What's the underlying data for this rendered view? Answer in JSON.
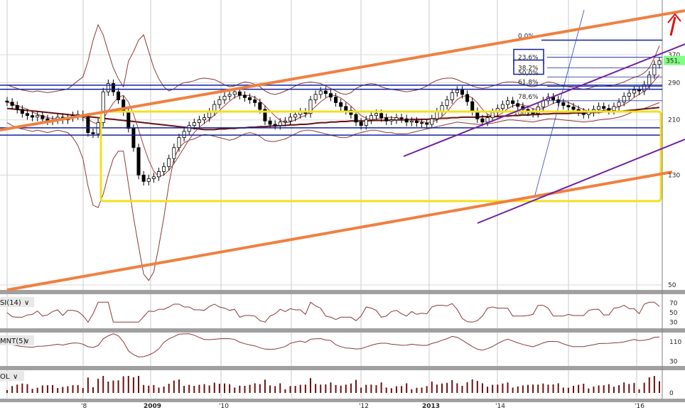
{
  "chart_data": [
    {
      "type": "candlestick",
      "panel": "price",
      "scale": "log",
      "y_ticks": [
        370,
        290,
        210,
        130,
        50
      ],
      "x_ticks": [
        "'8",
        "2009",
        "'10",
        "'12",
        "2013",
        "'14",
        "'16"
      ],
      "last_price_label": "351,",
      "fibonacci_levels": [
        {
          "label": "0,0%",
          "value": 420
        },
        {
          "label": "23,6%",
          "value": 362
        },
        {
          "label": "38,2%",
          "value": 330
        },
        {
          "label": "50,0%",
          "value": 305
        },
        {
          "label": "61,8%",
          "value": 281
        },
        {
          "label": "78,6%",
          "value": 248
        },
        {
          "label": "100,0%",
          "value": 215
        }
      ],
      "horizontal_levels": [
        420,
        284,
        274,
        196,
        184
      ],
      "closes": [
        245,
        238,
        230,
        222,
        218,
        215,
        218,
        212,
        208,
        210,
        215,
        210,
        214,
        218,
        220,
        215,
        188,
        186,
        205,
        268,
        288,
        268,
        250,
        225,
        195,
        165,
        130,
        123,
        126,
        128,
        134,
        140,
        150,
        165,
        180,
        190,
        200,
        205,
        210,
        214,
        225,
        240,
        250,
        258,
        262,
        268,
        260,
        255,
        250,
        244,
        230,
        208,
        202,
        200,
        206,
        208,
        215,
        220,
        225,
        222,
        250,
        262,
        270,
        264,
        256,
        244,
        236,
        228,
        220,
        206,
        200,
        210,
        218,
        222,
        214,
        208,
        210,
        214,
        212,
        206,
        208,
        205,
        204,
        202,
        212,
        225,
        238,
        250,
        266,
        272,
        262,
        246,
        226,
        212,
        206,
        214,
        224,
        232,
        240,
        248,
        242,
        236,
        230,
        225,
        222,
        235,
        248,
        256,
        250,
        244,
        238,
        235,
        230,
        225,
        220,
        224,
        230,
        236,
        232,
        228,
        236,
        245,
        258,
        265,
        272,
        270,
        285,
        310,
        340,
        351
      ],
      "bands_upper": [
        285,
        280,
        276,
        272,
        270,
        268,
        270,
        268,
        266,
        268,
        270,
        272,
        275,
        285,
        295,
        305,
        350,
        420,
        480,
        440,
        380,
        330,
        300,
        280,
        350,
        380,
        420,
        440,
        380,
        330,
        300,
        280,
        270,
        275,
        285,
        290,
        292,
        295,
        300,
        302,
        300,
        298,
        292,
        285,
        280,
        282,
        288,
        292,
        290,
        286,
        280,
        270,
        264,
        262,
        265,
        270,
        275,
        282,
        288,
        290,
        292,
        290,
        288,
        282,
        276,
        270,
        264,
        262,
        266,
        276,
        282,
        286,
        288,
        286,
        280,
        276,
        274,
        272,
        270,
        268,
        270,
        272,
        276,
        282,
        290,
        296,
        300,
        302,
        302,
        298,
        292,
        288,
        282,
        278,
        276,
        278,
        282,
        286,
        290,
        292,
        292,
        290,
        286,
        282,
        280,
        283,
        288,
        292,
        290,
        286,
        282,
        280,
        278,
        276,
        274,
        276,
        280,
        284,
        284,
        282,
        284,
        288,
        292,
        298,
        304,
        308,
        316,
        330,
        360,
        400
      ],
      "bands_lower": [
        205,
        200,
        196,
        194,
        192,
        190,
        192,
        190,
        188,
        190,
        192,
        190,
        188,
        180,
        168,
        150,
        118,
        100,
        98,
        110,
        130,
        150,
        160,
        160,
        120,
        90,
        70,
        55,
        52,
        56,
        70,
        90,
        120,
        150,
        165,
        172,
        176,
        178,
        182,
        185,
        184,
        182,
        180,
        178,
        176,
        178,
        182,
        186,
        188,
        186,
        182,
        176,
        174,
        174,
        176,
        178,
        182,
        186,
        190,
        192,
        192,
        190,
        188,
        186,
        184,
        182,
        180,
        180,
        182,
        186,
        188,
        190,
        192,
        192,
        190,
        188,
        188,
        186,
        186,
        186,
        188,
        190,
        192,
        194,
        196,
        198,
        200,
        202,
        204,
        206,
        205,
        204,
        203,
        202,
        202,
        203,
        204,
        206,
        208,
        210,
        210,
        209,
        208,
        207,
        206,
        208,
        210,
        212,
        212,
        211,
        210,
        209,
        208,
        207,
        206,
        207,
        208,
        210,
        211,
        212,
        213,
        215,
        218,
        222,
        226,
        230,
        232,
        236,
        240,
        244
      ],
      "ma_slow": [
        232,
        231,
        230,
        229,
        228,
        227,
        226,
        225,
        224,
        223,
        222,
        221,
        220,
        219,
        218,
        217,
        216,
        215,
        214,
        213,
        212,
        211,
        210,
        209,
        208,
        207,
        206,
        205,
        204,
        203,
        202,
        201,
        200,
        199,
        198,
        197,
        196,
        195,
        194,
        193,
        193,
        193,
        194,
        194,
        195,
        195,
        196,
        196,
        197,
        197,
        198,
        198,
        199,
        199,
        200,
        200,
        201,
        201,
        202,
        202,
        203,
        204,
        205,
        205,
        206,
        206,
        207,
        207,
        208,
        208,
        208,
        208,
        209,
        209,
        209,
        209,
        210,
        210,
        210,
        210,
        211,
        211,
        211,
        211,
        212,
        212,
        213,
        213,
        214,
        214,
        215,
        215,
        215,
        215,
        216,
        216,
        216,
        216,
        217,
        217,
        218,
        218,
        219,
        219,
        220,
        220,
        221,
        221,
        222,
        222,
        222,
        222,
        223,
        223,
        223,
        223,
        224,
        224,
        225,
        225,
        226,
        226,
        227,
        228,
        229,
        230,
        231,
        232,
        233,
        234
      ],
      "rsi_ticks": [
        70,
        50,
        30
      ],
      "momentum_ticks": [
        110,
        30
      ],
      "volume_ticks": [
        0
      ],
      "panel_labels": [
        "SI(14)",
        "MNT(5)",
        "OL"
      ]
    }
  ],
  "colors": {
    "channel": "#f08040",
    "fib_line": "#1020a0",
    "range_box": "#f0e020",
    "candle": "#000000",
    "bands": "#8a3a3a",
    "ma_slow": "#6a1010",
    "trend_purple": "#7020a0",
    "arrow": "#e01010",
    "last_price_bg": "#80ff80",
    "panel_sep": "#909090"
  }
}
